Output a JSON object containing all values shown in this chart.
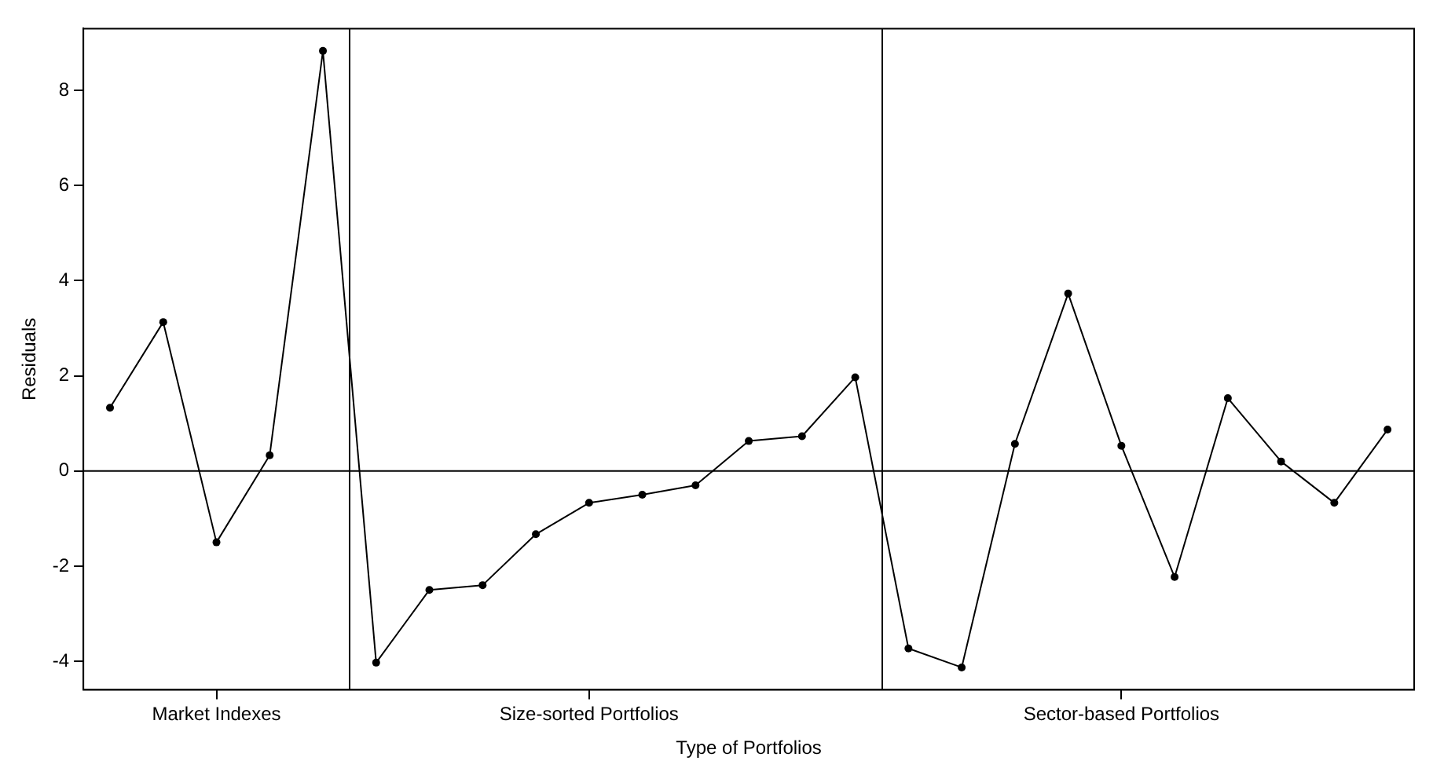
{
  "chart_data": {
    "type": "line",
    "xlabel": "Type of Portfolios",
    "ylabel": "Residuals",
    "categories": [
      null,
      null,
      "Market Indexes",
      null,
      null,
      null,
      null,
      null,
      null,
      "Size-sorted Portfolios",
      null,
      null,
      null,
      null,
      null,
      null,
      null,
      null,
      null,
      "Sector-based Portfolios",
      null,
      null,
      null,
      null,
      null
    ],
    "values": [
      1.33,
      3.13,
      -1.5,
      0.33,
      8.83,
      -4.03,
      -2.5,
      -2.4,
      -1.33,
      -0.67,
      -0.5,
      -0.3,
      0.63,
      0.73,
      1.97,
      -3.73,
      -4.13,
      0.57,
      3.73,
      0.53,
      -2.23,
      1.53,
      0.2,
      -0.67,
      0.87
    ],
    "color": "#000000",
    "marker": "circle",
    "line_style": "solid",
    "grid": false,
    "legend": false,
    "ylim": [
      -4.6,
      9.3
    ],
    "yticks": [
      -4,
      -2,
      0,
      2,
      4,
      6,
      8
    ],
    "ref_lines": [
      {
        "axis": "y",
        "value": 0
      }
    ]
  }
}
